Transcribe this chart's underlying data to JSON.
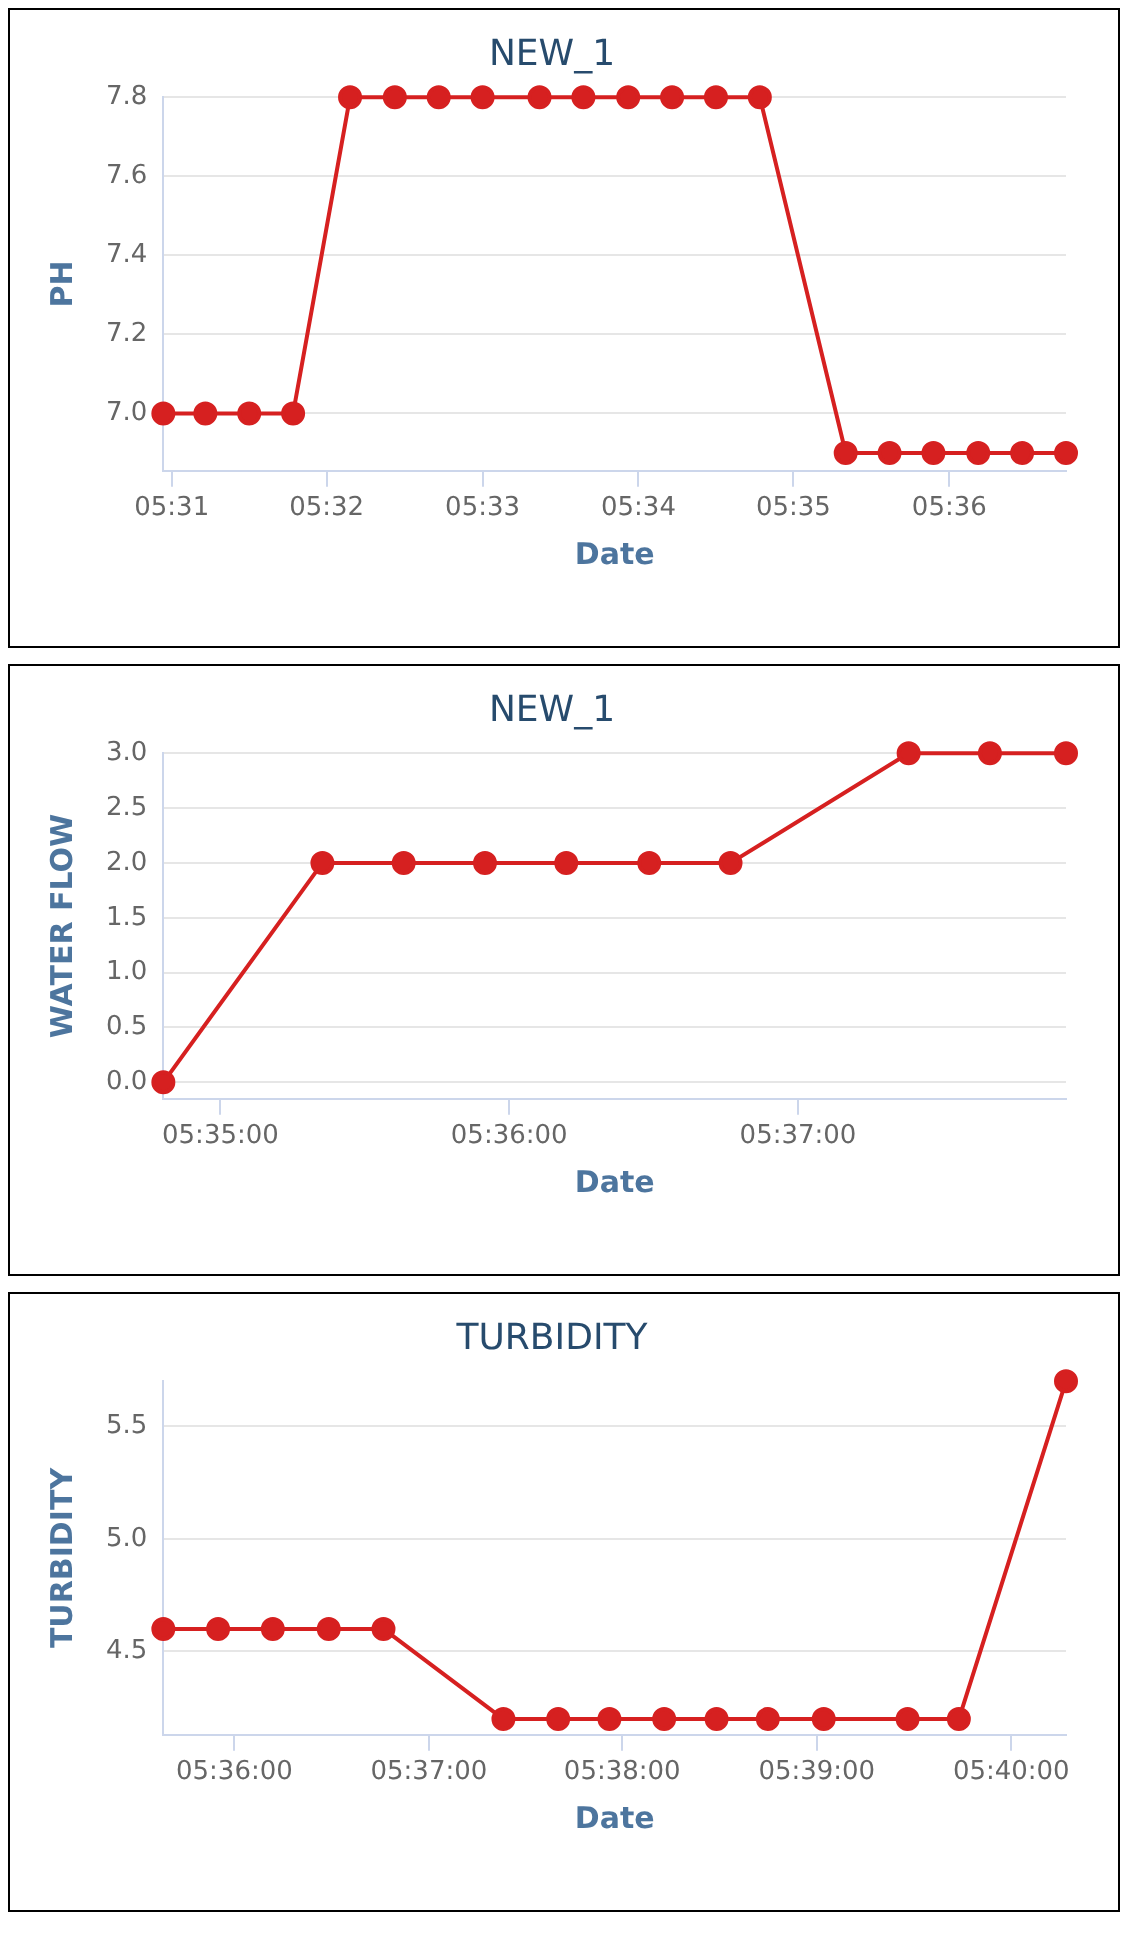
{
  "chart_data": [
    {
      "type": "line",
      "title": "NEW_1",
      "xlabel": "Date",
      "ylabel": "PH",
      "marker": "circle",
      "grid": "y",
      "line_style": "solid",
      "x": [
        5.5158,
        5.5203,
        5.525,
        5.5297,
        5.5358,
        5.5406,
        5.5453,
        5.55,
        5.5561,
        5.5608,
        5.5656,
        5.5703,
        5.575,
        5.5797,
        5.5889,
        5.5936,
        5.5983,
        5.6031,
        5.6078,
        5.6125
      ],
      "series": [
        {
          "color": "#d62020",
          "values": [
            7,
            7,
            7,
            7,
            7.8,
            7.8,
            7.8,
            7.8,
            7.8,
            7.8,
            7.8,
            7.8,
            7.8,
            7.8,
            6.9,
            6.9,
            6.9,
            6.9,
            6.9,
            6.9
          ]
        }
      ],
      "xlim": [
        5.5158,
        5.6125
      ],
      "xticks": [
        {
          "value": 5.5167,
          "label": "05:31"
        },
        {
          "value": 5.5333,
          "label": "05:32"
        },
        {
          "value": 5.55,
          "label": "05:33"
        },
        {
          "value": 5.5667,
          "label": "05:34"
        },
        {
          "value": 5.5833,
          "label": "05:35"
        },
        {
          "value": 5.6,
          "label": "05:36"
        }
      ],
      "ylim": [
        6.855,
        7.8
      ],
      "yticks": [
        {
          "value": 7,
          "label": "7.0"
        },
        7.2,
        7.4,
        7.6,
        7.8
      ]
    },
    {
      "type": "line",
      "title": "NEW_1",
      "xlabel": "Date",
      "ylabel": "WATER FLOW",
      "marker": "circle",
      "grid": "y",
      "line_style": "solid",
      "x": [
        5.58,
        5.5892,
        5.5939,
        5.5986,
        5.6033,
        5.6081,
        5.6128,
        5.6231,
        5.6278,
        5.6322
      ],
      "series": [
        {
          "color": "#d62020",
          "values": [
            0,
            2,
            2,
            2,
            2,
            2,
            2,
            3,
            3,
            3
          ]
        }
      ],
      "xlim": [
        5.58,
        5.6322
      ],
      "xticks": [
        {
          "value": 5.5833,
          "label": "05:35:00"
        },
        {
          "value": 5.6,
          "label": "05:36:00"
        },
        {
          "value": 5.6167,
          "label": "05:37:00"
        }
      ],
      "ylim": [
        -0.15,
        3
      ],
      "yticks": [
        {
          "value": 0,
          "label": "0.0"
        },
        0.5,
        {
          "value": 1,
          "label": "1.0"
        },
        1.5,
        {
          "value": 2,
          "label": "2.0"
        },
        2.5,
        {
          "value": 3,
          "label": "3.0"
        }
      ]
    },
    {
      "type": "line",
      "title": "TURBIDITY",
      "xlabel": "Date",
      "ylabel": "TURBIDITY",
      "marker": "circle",
      "grid": "y",
      "line_style": "solid",
      "x": [
        5.5939,
        5.5986,
        5.6033,
        5.6081,
        5.6128,
        5.6231,
        5.6278,
        5.6322,
        5.6369,
        5.6414,
        5.6458,
        5.6506,
        5.6578,
        5.6622,
        5.6714
      ],
      "series": [
        {
          "color": "#d62020",
          "values": [
            4.6,
            4.6,
            4.6,
            4.6,
            4.6,
            4.2,
            4.2,
            4.2,
            4.2,
            4.2,
            4.2,
            4.2,
            4.2,
            4.2,
            5.7
          ]
        }
      ],
      "xlim": [
        5.5939,
        5.6714
      ],
      "xticks": [
        {
          "value": 5.6,
          "label": "05:36:00"
        },
        {
          "value": 5.6167,
          "label": "05:37:00"
        },
        {
          "value": 5.6333,
          "label": "05:38:00"
        },
        {
          "value": 5.65,
          "label": "05:39:00"
        },
        {
          "value": 5.6667,
          "label": "05:40:00"
        }
      ],
      "ylim": [
        4.13,
        5.7
      ],
      "yticks": [
        4.5,
        {
          "value": 5,
          "label": "5.0"
        },
        5.5
      ]
    }
  ]
}
